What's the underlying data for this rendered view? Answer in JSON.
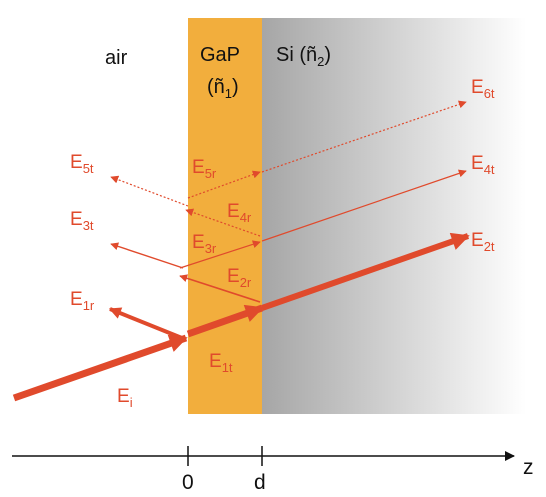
{
  "colors": {
    "field": "#E04A2C",
    "gap_layer": "#F2AE3D",
    "si_gradient_start": "#A6A6A6",
    "si_gradient_end": "#FFFFFF",
    "axis": "#111111"
  },
  "regions": {
    "air": "air",
    "gap_name": "GaP",
    "gap_index": "(ñ",
    "gap_index_sub": "1",
    "gap_index_close": ")",
    "si_name": "Si (ñ",
    "si_index_sub": "2",
    "si_close": ")"
  },
  "fields": {
    "Ei": {
      "main": "E",
      "sub": "i"
    },
    "E1r": {
      "main": "E",
      "sub": "1r"
    },
    "E1t": {
      "main": "E",
      "sub": "1t"
    },
    "E2r": {
      "main": "E",
      "sub": "2r"
    },
    "E2t": {
      "main": "E",
      "sub": "2t"
    },
    "E3r": {
      "main": "E",
      "sub": "3r"
    },
    "E3t": {
      "main": "E",
      "sub": "3t"
    },
    "E4r": {
      "main": "E",
      "sub": "4r"
    },
    "E4t": {
      "main": "E",
      "sub": "4t"
    },
    "E5r": {
      "main": "E",
      "sub": "5r"
    },
    "E5t": {
      "main": "E",
      "sub": "5t"
    },
    "E6t": {
      "main": "E",
      "sub": "6t"
    }
  },
  "axis": {
    "label": "z",
    "tick_0": "0",
    "tick_d": "d"
  }
}
